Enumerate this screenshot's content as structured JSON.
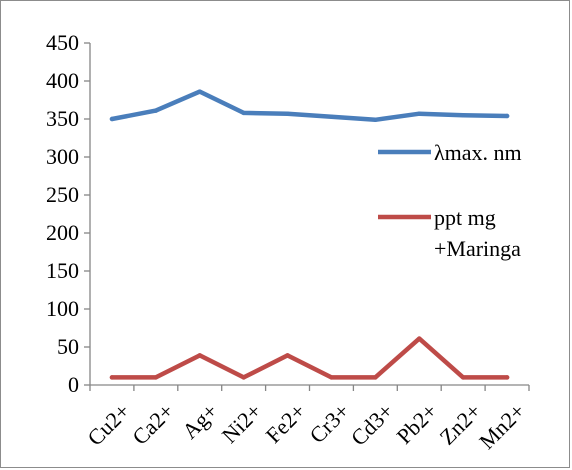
{
  "chart_data": {
    "type": "line",
    "title": "",
    "xlabel": "",
    "ylabel": "",
    "categories": [
      "Cu2+",
      "Ca2+",
      "Ag+",
      "Ni2+",
      "Fe2+",
      "Cr3+",
      "Cd3+",
      "Pb2+",
      "Zn2+",
      "Mn2+"
    ],
    "ylim": [
      0,
      450
    ],
    "yticks": [
      0,
      50,
      100,
      150,
      200,
      250,
      300,
      350,
      400,
      450
    ],
    "grid": false,
    "legend_position": "right",
    "series": [
      {
        "name": "λmax. nm",
        "color": "#4a7ebb",
        "values": [
          350,
          361,
          386,
          358,
          357,
          353,
          349,
          357,
          355,
          354
        ]
      },
      {
        "name": "ppt mg +Maringa",
        "name_lines": [
          "ppt mg",
          "+Maringa"
        ],
        "color": "#be4b48",
        "values": [
          10,
          10,
          39,
          10,
          39,
          10,
          10,
          61,
          10,
          10
        ]
      }
    ]
  }
}
